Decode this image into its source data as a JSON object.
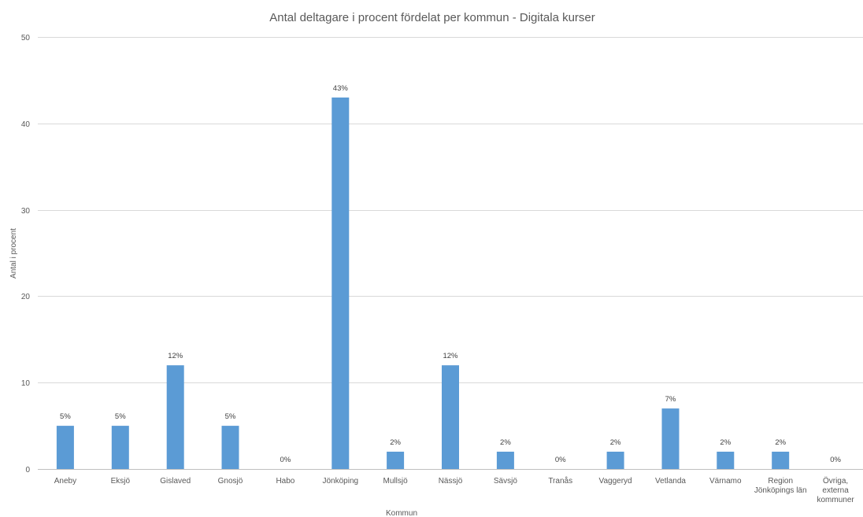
{
  "chart_data": {
    "type": "bar",
    "title": "Antal deltagare i procent fördelat per kommun - Digitala kurser",
    "xlabel": "Kommun",
    "ylabel": "Antal i procent",
    "ylim": [
      0,
      50
    ],
    "yticks": [
      0,
      10,
      20,
      30,
      40,
      50
    ],
    "grid": true,
    "categories": [
      [
        "Aneby"
      ],
      [
        "Eksjö"
      ],
      [
        "Gislaved"
      ],
      [
        "Gnosjö"
      ],
      [
        "Habo"
      ],
      [
        "Jönköping"
      ],
      [
        "Mullsjö"
      ],
      [
        "Nässjö"
      ],
      [
        "Sävsjö"
      ],
      [
        "Tranås"
      ],
      [
        "Vaggeryd"
      ],
      [
        "Vetlanda"
      ],
      [
        "Värnamo"
      ],
      [
        "Region",
        "Jönköpings län"
      ],
      [
        "Övriga,",
        "externa",
        "kommuner"
      ]
    ],
    "values": [
      5,
      5,
      12,
      5,
      0,
      43,
      2,
      12,
      2,
      0,
      2,
      7,
      2,
      2,
      0
    ],
    "data_labels": [
      "5%",
      "5%",
      "12%",
      "5%",
      "0%",
      "43%",
      "2%",
      "12%",
      "2%",
      "0%",
      "2%",
      "7%",
      "2%",
      "2%",
      "0%"
    ],
    "bar_color": "#5b9bd5"
  }
}
